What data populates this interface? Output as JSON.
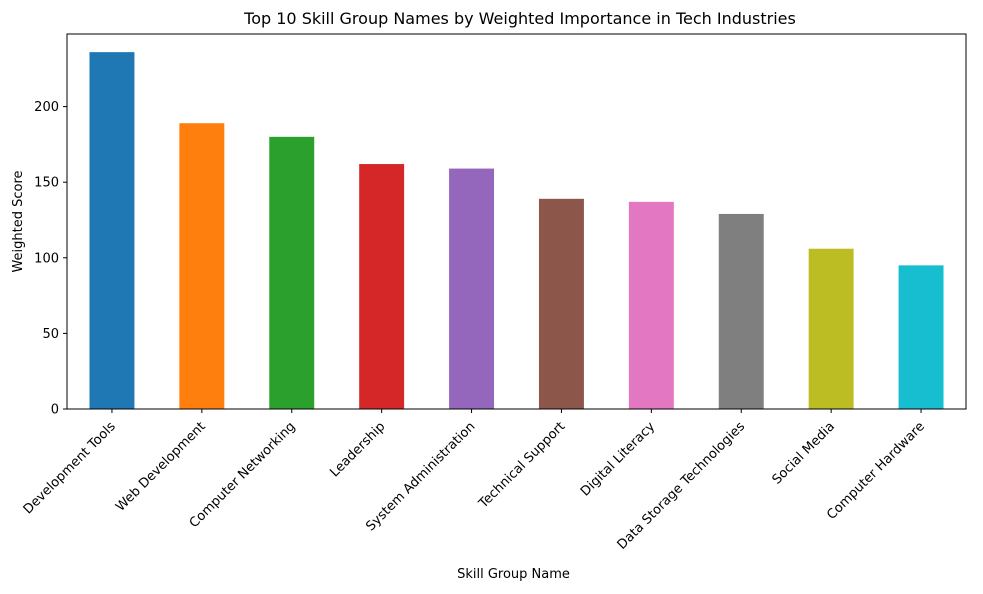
{
  "chart_data": {
    "type": "bar",
    "title": "Top 10 Skill Group Names by Weighted Importance in Tech Industries",
    "xlabel": "Skill Group Name",
    "ylabel": "Weighted Score",
    "categories": [
      "Development Tools",
      "Web Development",
      "Computer Networking",
      "Leadership",
      "System Administration",
      "Technical Support",
      "Digital Literacy",
      "Data Storage Technologies",
      "Social Media",
      "Computer Hardware"
    ],
    "values": [
      236,
      189,
      180,
      162,
      159,
      139,
      137,
      129,
      106,
      95
    ],
    "colors": [
      "#1f77b4",
      "#ff7f0e",
      "#2ca02c",
      "#d62728",
      "#9467bd",
      "#8c564b",
      "#e377c2",
      "#7f7f7f",
      "#bcbd22",
      "#17becf"
    ],
    "ylim": [
      0,
      248
    ],
    "yticks": [
      0,
      50,
      100,
      150,
      200
    ],
    "grid": false,
    "legend": "none"
  }
}
